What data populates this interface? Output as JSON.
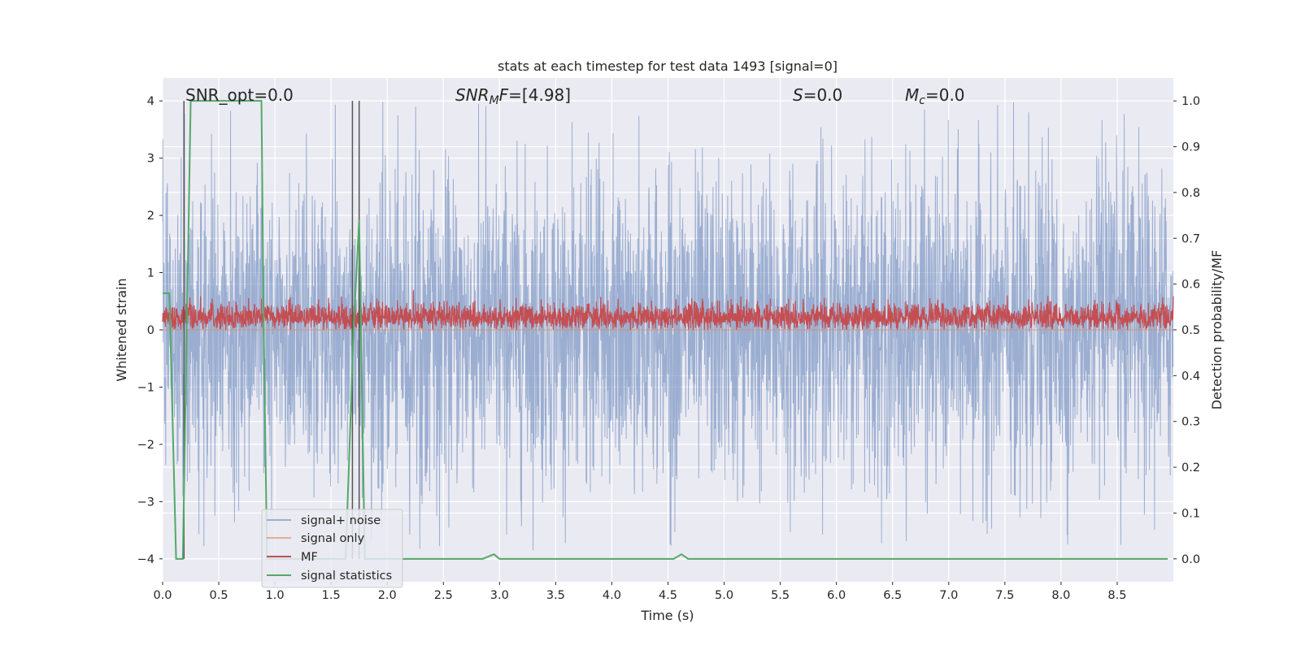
{
  "chart_data": {
    "type": "line",
    "title": "stats at each timestep for test data 1493 [signal=0]",
    "xlabel": "Time (s)",
    "ylabel_left": "Whitened strain",
    "ylabel_right": "Detection probability/MF",
    "xlim": [
      0.0,
      9.0
    ],
    "ylim_left": [
      -4.4,
      4.4
    ],
    "ylim_right": [
      -0.05,
      1.05
    ],
    "x_ticks": [
      "0.0",
      "0.5",
      "1.0",
      "1.5",
      "2.0",
      "2.5",
      "3.0",
      "3.5",
      "4.0",
      "4.5",
      "5.0",
      "5.5",
      "6.0",
      "6.5",
      "7.0",
      "7.5",
      "8.0",
      "8.5"
    ],
    "x_tick_values": [
      0.0,
      0.5,
      1.0,
      1.5,
      2.0,
      2.5,
      3.0,
      3.5,
      4.0,
      4.5,
      5.0,
      5.5,
      6.0,
      6.5,
      7.0,
      7.5,
      8.0,
      8.5
    ],
    "y_left_ticks": [
      "−4",
      "−3",
      "−2",
      "−1",
      "0",
      "1",
      "2",
      "3",
      "4"
    ],
    "y_left_tick_values": [
      -4,
      -3,
      -2,
      -1,
      0,
      1,
      2,
      3,
      4
    ],
    "y_right_ticks": [
      "0.0",
      "0.1",
      "0.2",
      "0.3",
      "0.4",
      "0.5",
      "0.6",
      "0.7",
      "0.8",
      "0.9",
      "1.0"
    ],
    "y_right_tick_values": [
      0.0,
      0.1,
      0.2,
      0.3,
      0.4,
      0.5,
      0.6,
      0.7,
      0.8,
      0.9,
      1.0
    ],
    "grid": true,
    "legend_position": "lower-left",
    "annotations": {
      "snr_opt": "SNR_opt=0.0",
      "snr_mf_sym": "SNR",
      "snr_mf_sub": "M",
      "snr_mf_rest": "F=[4.98]",
      "s_sym": "S",
      "s_rest": "=0.0",
      "mc_sym": "M",
      "mc_sub": "c",
      "mc_rest": "=0.0"
    },
    "vertical_lines": [
      0.19,
      1.69,
      1.75
    ],
    "series": [
      {
        "name": "signal+ noise",
        "color": "#4c72b0",
        "axis": "left",
        "kind": "noise",
        "range": [
          -3.85,
          4.0
        ],
        "typical_abs": 1.5,
        "points": 3600
      },
      {
        "name": "signal only",
        "color": "#dd8452",
        "axis": "left",
        "kind": "constant",
        "value": 0.0
      },
      {
        "name": "MF",
        "color": "#c44e52",
        "axis": "left",
        "kind": "noise-positive",
        "baseline": 0.22,
        "range": [
          0.0,
          0.99
        ],
        "points": 3600
      },
      {
        "name": "signal statistics",
        "color": "#55a868",
        "axis": "right",
        "x": [
          0.0,
          0.06,
          0.12,
          0.18,
          0.25,
          0.88,
          0.9,
          0.93,
          1.63,
          1.7,
          1.75,
          1.8,
          2.85,
          2.95,
          3.0,
          4.55,
          4.62,
          4.68,
          8.95
        ],
        "y": [
          0.58,
          0.58,
          0.0,
          0.0,
          1.0,
          1.0,
          0.5,
          0.0,
          0.0,
          0.5,
          0.74,
          0.0,
          0.0,
          0.01,
          0.0,
          0.0,
          0.01,
          0.0,
          0.0
        ]
      }
    ]
  }
}
